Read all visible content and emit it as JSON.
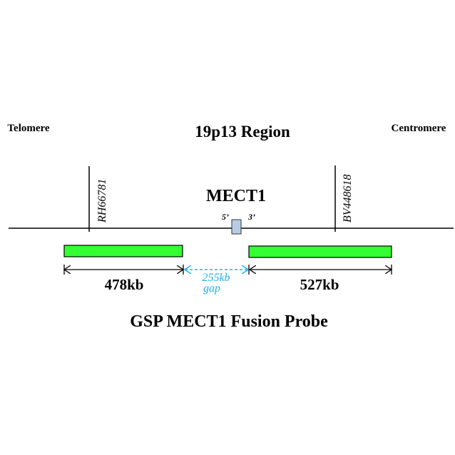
{
  "labels": {
    "telomere": "Telomere",
    "centromere": "Centromere",
    "region": "19p13 Region",
    "gene": "MECT1",
    "five_prime": "5’",
    "three_prime": "3’",
    "marker_left": "RH66781",
    "marker_right": "BV448618",
    "left_size": "478kb",
    "right_size": "527kb",
    "gap_size": "255kb",
    "gap_word": "gap",
    "probe_title": "GSP MECT1 Fusion Probe"
  },
  "colors": {
    "probe": "#33ff33",
    "gene_box": "#b8cce4",
    "gap": "#1fb0f0"
  }
}
